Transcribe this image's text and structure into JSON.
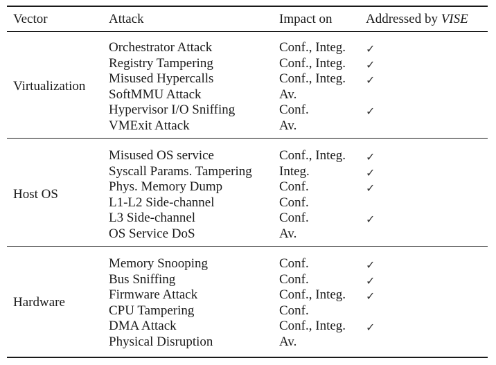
{
  "header": {
    "vector": "Vector",
    "attack": "Attack",
    "impact": "Impact on",
    "addressed_prefix": "Addressed by ",
    "addressed_name": "VISE"
  },
  "check_mark": "✓",
  "groups": [
    {
      "vector": "Virtualization",
      "rows": [
        {
          "attack": "Orchestrator Attack",
          "impact": "Conf., Integ.",
          "addressed": true
        },
        {
          "attack": "Registry Tampering",
          "impact": "Conf., Integ.",
          "addressed": true
        },
        {
          "attack": "Misused Hypercalls",
          "impact": "Conf., Integ.",
          "addressed": true
        },
        {
          "attack": "SoftMMU Attack",
          "impact": "Av.",
          "addressed": false
        },
        {
          "attack": "Hypervisor I/O Sniffing",
          "impact": "Conf.",
          "addressed": true
        },
        {
          "attack": "VMExit Attack",
          "impact": "Av.",
          "addressed": false
        }
      ]
    },
    {
      "vector": "Host OS",
      "rows": [
        {
          "attack": "Misused OS service",
          "impact": "Conf., Integ.",
          "addressed": true
        },
        {
          "attack": "Syscall Params. Tampering",
          "impact": "Integ.",
          "addressed": true
        },
        {
          "attack": "Phys. Memory Dump",
          "impact": "Conf.",
          "addressed": true
        },
        {
          "attack": "L1-L2 Side-channel",
          "impact": "Conf.",
          "addressed": false
        },
        {
          "attack": "L3 Side-channel",
          "impact": "Conf.",
          "addressed": true
        },
        {
          "attack": "OS Service DoS",
          "impact": "Av.",
          "addressed": false
        }
      ]
    },
    {
      "vector": "Hardware",
      "rows": [
        {
          "attack": "Memory Snooping",
          "impact": "Conf.",
          "addressed": true
        },
        {
          "attack": "Bus Sniffing",
          "impact": "Conf.",
          "addressed": true
        },
        {
          "attack": "Firmware Attack",
          "impact": "Conf., Integ.",
          "addressed": true
        },
        {
          "attack": "CPU Tampering",
          "impact": "Conf.",
          "addressed": false
        },
        {
          "attack": "DMA Attack",
          "impact": "Conf., Integ.",
          "addressed": true
        },
        {
          "attack": "Physical Disruption",
          "impact": "Av.",
          "addressed": false
        }
      ]
    }
  ]
}
